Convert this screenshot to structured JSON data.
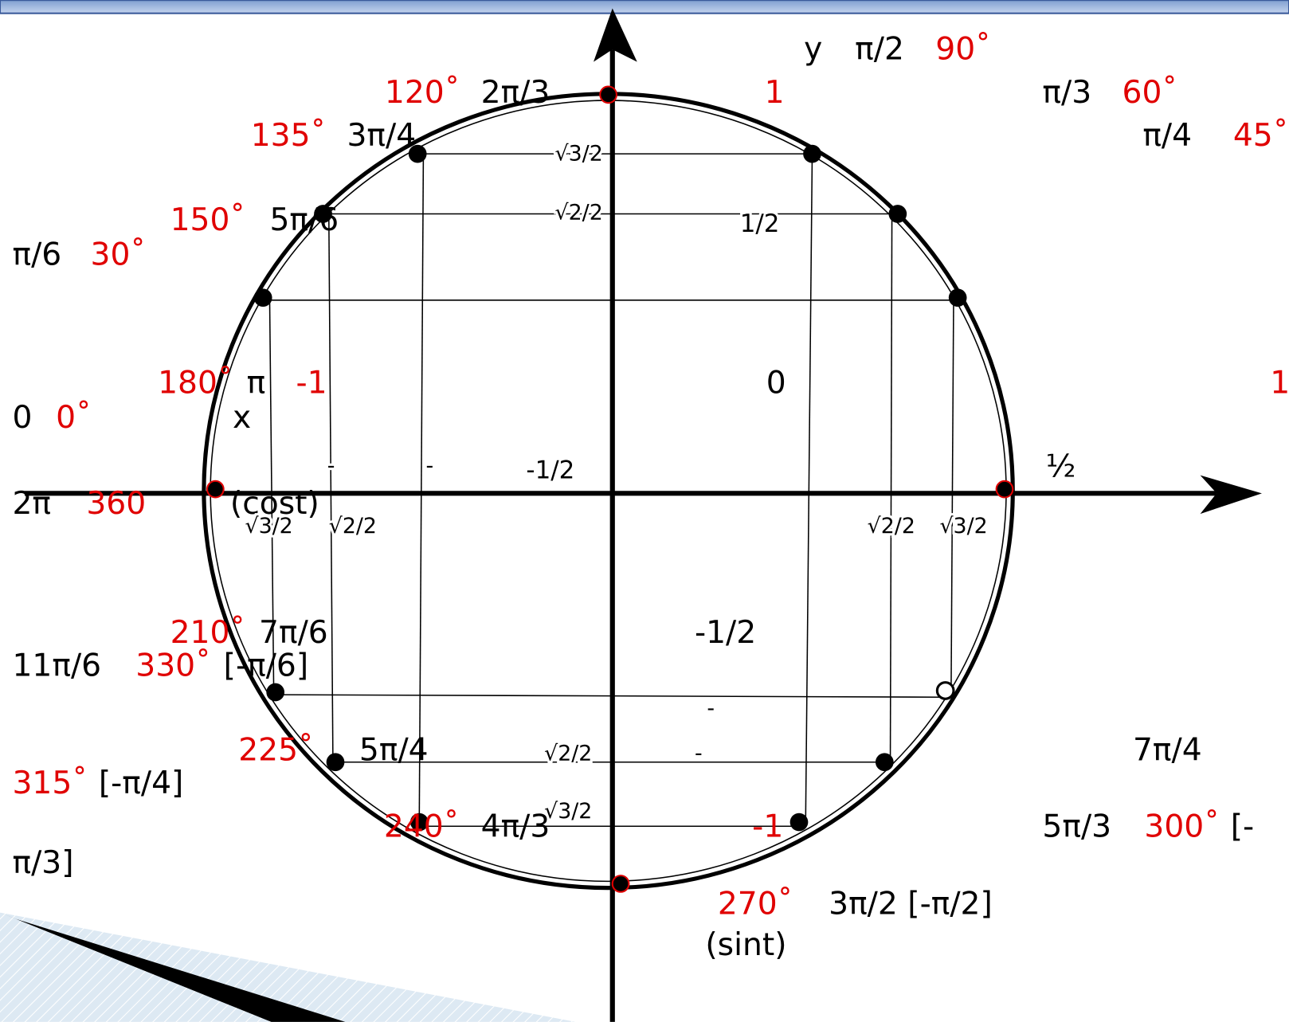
{
  "labels": [
    {
      "text": "y",
      "color": "#000"
    },
    {
      "text": "π/2",
      "color": "#000"
    },
    {
      "text": "90˚",
      "color": "#e00000"
    },
    {
      "text": "120˚",
      "color": "#e00000"
    },
    {
      "text": "2π/3",
      "color": "#000"
    },
    {
      "text": "1",
      "color": "#e00000"
    },
    {
      "text": "π/3",
      "color": "#000"
    },
    {
      "text": "60˚",
      "color": "#e00000"
    },
    {
      "text": "135˚",
      "color": "#e00000"
    },
    {
      "text": "3π/4",
      "color": "#000"
    },
    {
      "text": "π/4",
      "color": "#000"
    },
    {
      "text": "45˚",
      "color": "#e00000"
    },
    {
      "text": "150˚",
      "color": "#e00000"
    },
    {
      "text": "5π/6",
      "color": "#000"
    },
    {
      "text": "π/6",
      "color": "#000"
    },
    {
      "text": "30˚",
      "color": "#e00000"
    },
    {
      "text": "180˚",
      "color": "#e00000"
    },
    {
      "text": "π",
      "color": "#000"
    },
    {
      "text": "-1",
      "color": "#e00000"
    },
    {
      "text": "0",
      "color": "#000"
    },
    {
      "text": "1",
      "color": "#e00000"
    },
    {
      "text": "0",
      "color": "#000"
    },
    {
      "text": "0˚",
      "color": "#e00000"
    },
    {
      "text": "x",
      "color": "#000"
    },
    {
      "text": "½",
      "color": "#000"
    },
    {
      "text": "2π",
      "color": "#000"
    },
    {
      "text": "360",
      "color": "#e00000"
    },
    {
      "text": "(cost)",
      "color": "#000"
    },
    {
      "text": "210˚",
      "color": "#e00000"
    },
    {
      "text": "7π/6",
      "color": "#000"
    },
    {
      "text": "-1/2",
      "color": "#000"
    },
    {
      "text": "11π/6",
      "color": "#000"
    },
    {
      "text": "330˚",
      "color": "#e00000"
    },
    {
      "text": "[-π/6]",
      "color": "#000"
    },
    {
      "text": "225˚",
      "color": "#e00000"
    },
    {
      "text": "5π/4",
      "color": "#000"
    },
    {
      "text": "7π/4",
      "color": "#000"
    },
    {
      "text": "315˚",
      "color": "#e00000"
    },
    {
      "text": "[-π/4]",
      "color": "#000"
    },
    {
      "text": "240˚",
      "color": "#e00000"
    },
    {
      "text": "4π/3",
      "color": "#000"
    },
    {
      "text": "-1",
      "color": "#e00000"
    },
    {
      "text": "5π/3",
      "color": "#000"
    },
    {
      "text": "300˚",
      "color": "#e00000"
    },
    {
      "text": "[-",
      "color": "#000"
    },
    {
      "text": "π/3]",
      "color": "#000"
    },
    {
      "text": "270˚",
      "color": "#e00000"
    },
    {
      "text": "3π/2 [-π/2]",
      "color": "#000"
    },
    {
      "text": "(sint)",
      "color": "#000"
    }
  ],
  "small_labels": [
    {
      "text": "√3/2"
    },
    {
      "text": "√2/2"
    },
    {
      "text": "1/2"
    },
    {
      "text": "-"
    },
    {
      "text": "-"
    },
    {
      "text": "-1/2"
    },
    {
      "text": "√3/2"
    },
    {
      "text": "√2/2"
    },
    {
      "text": "√2/2"
    },
    {
      "text": "√3/2"
    },
    {
      "text": "-"
    },
    {
      "text": "√2/2"
    },
    {
      "text": "-"
    },
    {
      "text": "√3/2"
    }
  ]
}
